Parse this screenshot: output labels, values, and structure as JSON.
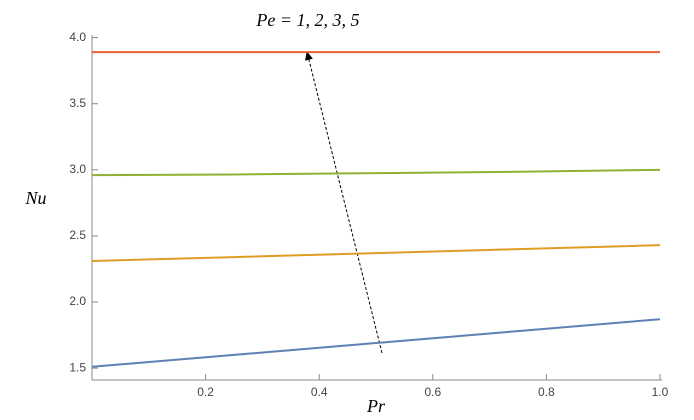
{
  "chart_data": {
    "type": "line",
    "x_label": "Pr",
    "y_label": "Nu",
    "annotation": "Pe = 1, 2, 3, 5",
    "x": [
      0,
      0.25,
      0.5,
      0.75,
      1
    ],
    "series": [
      {
        "color": "#5e81b5",
        "values": [
          1.51,
          1.6,
          1.69,
          1.78,
          1.87
        ]
      },
      {
        "color": "#e19c24",
        "values": [
          2.31,
          2.34,
          2.37,
          2.4,
          2.43
        ]
      },
      {
        "color": "#8fb032",
        "values": [
          2.96,
          2.965,
          2.975,
          2.985,
          3.0
        ]
      },
      {
        "color": "#eb6235",
        "values": [
          3.89,
          3.89,
          3.89,
          3.89,
          3.89
        ]
      }
    ],
    "xlim": [
      0,
      1
    ],
    "ylim": [
      1.41,
      4.02
    ],
    "xticks": [
      0.2,
      0.4,
      0.6,
      0.8,
      {
        "value": 1,
        "label": "1.0"
      }
    ],
    "yticks": [
      1.5,
      {
        "value": 2,
        "label": "2.0"
      },
      2.5,
      {
        "value": 3,
        "label": "3.0"
      },
      3.5,
      {
        "value": 4,
        "label": "4.0"
      }
    ]
  }
}
